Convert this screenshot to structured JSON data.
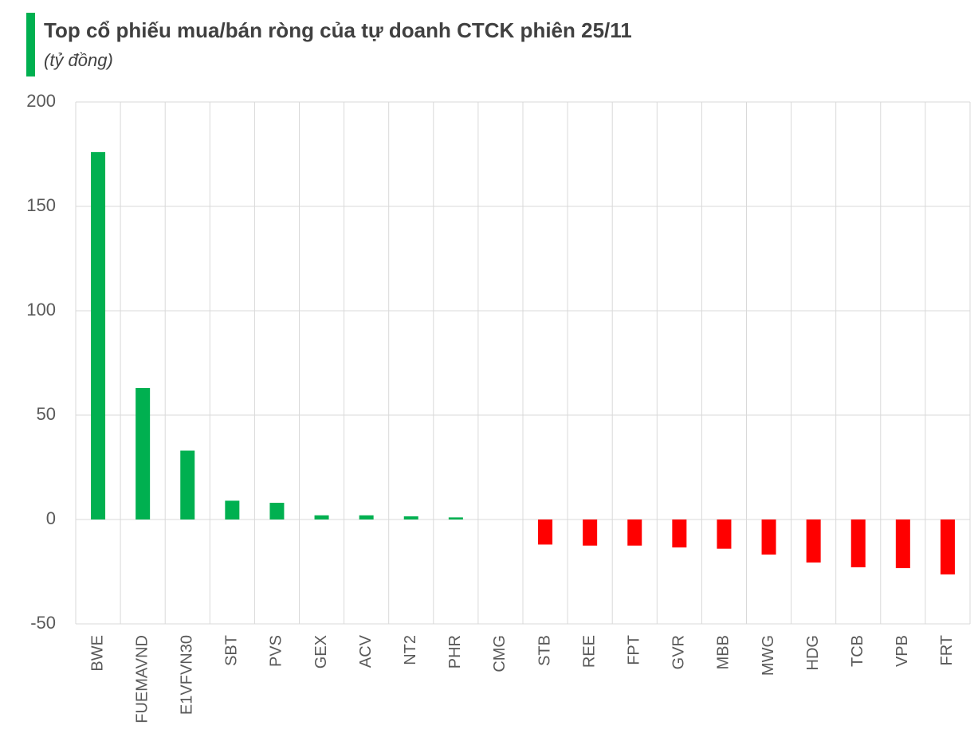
{
  "chart_data": {
    "type": "bar",
    "title": "Top cổ phiếu mua/bán ròng của tự doanh CTCK phiên 25/11",
    "subtitle": "(tỷ đồng)",
    "categories": [
      "BWE",
      "FUEMAVND",
      "E1VFVN30",
      "SBT",
      "PVS",
      "GEX",
      "ACV",
      "NT2",
      "PHR",
      "CMG",
      "STB",
      "REE",
      "FPT",
      "GVR",
      "MBB",
      "MWG",
      "HDG",
      "TCB",
      "VPB",
      "FRT"
    ],
    "values": [
      176,
      63,
      33,
      9,
      8,
      2,
      2,
      1.5,
      1,
      0,
      -12,
      -12.5,
      -12.5,
      -13.4,
      -14,
      -16.8,
      -20.6,
      -22.9,
      -23.3,
      -26.3
    ],
    "color_positive": "#00b050",
    "color_negative": "#ff0000",
    "ylim": [
      -50,
      200
    ],
    "yticks": [
      -50,
      0,
      50,
      100,
      150,
      200
    ],
    "grid": true
  }
}
